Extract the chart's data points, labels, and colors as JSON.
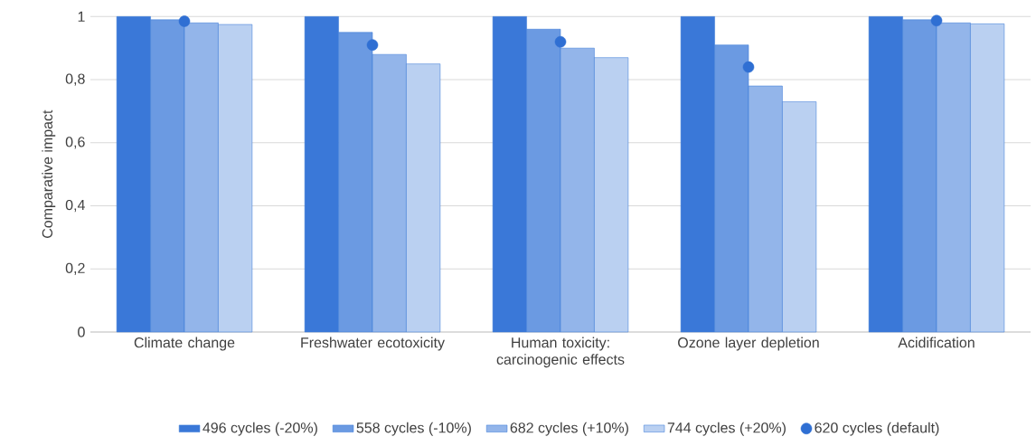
{
  "chart_data": {
    "type": "bar",
    "ylabel": "Comparative impact",
    "categories": [
      "Climate change",
      "Freshwater ecotoxicity",
      "Human toxicity: carcinogenic effects",
      "Ozone layer depletion",
      "Acidification"
    ],
    "series": [
      {
        "name": "496 cycles (-20%)",
        "color": "#3a78d8",
        "values": [
          1.0,
          1.0,
          1.0,
          1.0,
          1.0
        ]
      },
      {
        "name": "558 cycles (-10%)",
        "color": "#3a78d8",
        "values": [
          0.99,
          0.95,
          0.96,
          0.91,
          0.99
        ]
      },
      {
        "name": "682 cycles (+10%)",
        "color": "#3a78d8",
        "values": [
          0.98,
          0.88,
          0.9,
          0.78,
          0.98
        ]
      },
      {
        "name": "744 cycles (+20%)",
        "color": "#3a78d8",
        "values": [
          0.975,
          0.85,
          0.87,
          0.73,
          0.977
        ]
      },
      {
        "name": "620 cycles (default)",
        "type": "scatter",
        "color": "#2f6fd3",
        "x": [
          "Climate change",
          "Freshwater ecotoxicity",
          "Human toxicity: carcinogenic effects",
          "Ozone layer depletion",
          "Acidification"
        ],
        "values": [
          0.985,
          0.91,
          0.92,
          0.84,
          0.987
        ]
      }
    ],
    "ylim": [
      0,
      1
    ],
    "yticks": [
      0,
      {
        "value": 0.2,
        "label": "0,2"
      },
      {
        "value": 0.4,
        "label": "0,4"
      },
      {
        "value": 0.6,
        "label": "0,6"
      },
      {
        "value": 0.8,
        "label": "0,8"
      },
      1
    ],
    "grid": "y",
    "legend": "bottom"
  }
}
